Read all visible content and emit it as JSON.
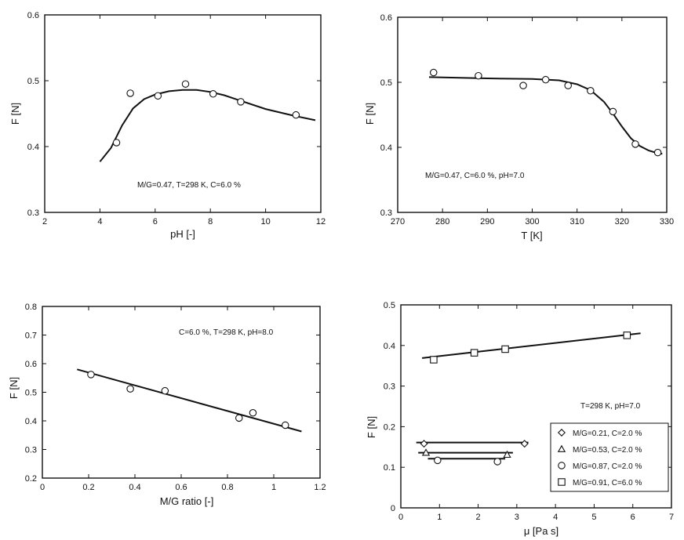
{
  "chart_data": [
    {
      "type": "scatter",
      "xlabel": "pH  [-]",
      "ylabel": "F  [N]",
      "xlim": [
        2,
        12
      ],
      "ylim": [
        0.3,
        0.6
      ],
      "xticks": [
        2,
        4,
        6,
        8,
        10,
        12
      ],
      "yticks": [
        0.3,
        0.4,
        0.5,
        0.6
      ],
      "xtick_labels": [
        "2",
        "4",
        "6",
        "8",
        "10",
        "12"
      ],
      "ytick_labels": [
        "0.3",
        "0.4",
        "0.5",
        "0.6"
      ],
      "annotation": "M/G=0.47, T=298 K, C=6.0 %",
      "series": [
        {
          "marker": "circle",
          "x": [
            4.6,
            5.1,
            6.1,
            7.1,
            8.1,
            9.1,
            11.1
          ],
          "y": [
            0.406,
            0.481,
            0.477,
            0.495,
            0.48,
            0.468,
            0.448
          ],
          "fit": [
            [
              4.0,
              0.377
            ],
            [
              4.4,
              0.398
            ],
            [
              4.8,
              0.432
            ],
            [
              5.2,
              0.458
            ],
            [
              5.6,
              0.472
            ],
            [
              6.0,
              0.479
            ],
            [
              6.5,
              0.484
            ],
            [
              7.0,
              0.486
            ],
            [
              7.5,
              0.486
            ],
            [
              8.0,
              0.483
            ],
            [
              8.5,
              0.478
            ],
            [
              9.0,
              0.471
            ],
            [
              10.0,
              0.457
            ],
            [
              11.0,
              0.447
            ],
            [
              11.8,
              0.44
            ]
          ]
        }
      ]
    },
    {
      "type": "scatter",
      "xlabel": "T  [K]",
      "ylabel": "F  [N]",
      "xlim": [
        270,
        330
      ],
      "ylim": [
        0.3,
        0.6
      ],
      "xticks": [
        270,
        280,
        290,
        300,
        310,
        320,
        330
      ],
      "yticks": [
        0.3,
        0.4,
        0.5,
        0.6
      ],
      "xtick_labels": [
        "270",
        "280",
        "290",
        "300",
        "310",
        "320",
        "330"
      ],
      "ytick_labels": [
        "0.3",
        "0.4",
        "0.5",
        "0.6"
      ],
      "annotation": "M/G=0.47, C=6.0 %, pH=7.0",
      "series": [
        {
          "marker": "circle",
          "x": [
            278,
            288,
            298,
            303,
            308,
            313,
            318,
            323,
            328
          ],
          "y": [
            0.515,
            0.51,
            0.495,
            0.504,
            0.495,
            0.487,
            0.455,
            0.405,
            0.392
          ],
          "fit": [
            [
              277,
              0.508
            ],
            [
              290,
              0.506
            ],
            [
              300,
              0.505
            ],
            [
              306,
              0.503
            ],
            [
              310,
              0.497
            ],
            [
              313,
              0.488
            ],
            [
              316,
              0.47
            ],
            [
              318,
              0.452
            ],
            [
              320,
              0.432
            ],
            [
              322,
              0.414
            ],
            [
              324,
              0.402
            ],
            [
              326,
              0.395
            ],
            [
              328,
              0.391
            ],
            [
              329,
              0.39
            ]
          ]
        }
      ]
    },
    {
      "type": "scatter",
      "xlabel": "M/G ratio  [-]",
      "ylabel": "F  [N]",
      "xlim": [
        0,
        1.2
      ],
      "ylim": [
        0.2,
        0.8
      ],
      "xticks": [
        0,
        0.2,
        0.4,
        0.6,
        0.8,
        1,
        1.2
      ],
      "yticks": [
        0.2,
        0.3,
        0.4,
        0.5,
        0.6,
        0.7,
        0.8
      ],
      "xtick_labels": [
        "0",
        "0.2",
        "0.4",
        "0.6",
        "0.8",
        "1",
        "1.2"
      ],
      "ytick_labels": [
        "0.2",
        "0.3",
        "0.4",
        "0.5",
        "0.6",
        "0.7",
        "0.8"
      ],
      "annotation": "C=6.0 %, T=298 K, pH=8.0",
      "series": [
        {
          "marker": "circle",
          "x": [
            0.21,
            0.38,
            0.53,
            0.85,
            0.91,
            1.05
          ],
          "y": [
            0.562,
            0.512,
            0.505,
            0.41,
            0.428,
            0.385
          ],
          "fit": [
            [
              0.15,
              0.58
            ],
            [
              1.12,
              0.363
            ]
          ]
        }
      ]
    },
    {
      "type": "scatter",
      "xlabel": "μ [Pa s]",
      "ylabel": "F [N]",
      "xlim": [
        0,
        7
      ],
      "ylim": [
        0,
        0.5
      ],
      "xticks": [
        0,
        1,
        2,
        3,
        4,
        5,
        6,
        7
      ],
      "yticks": [
        0,
        0.1,
        0.2,
        0.3,
        0.4,
        0.5
      ],
      "xtick_labels": [
        "0",
        "1",
        "2",
        "3",
        "4",
        "5",
        "6",
        "7"
      ],
      "ytick_labels": [
        "0",
        "0.1",
        "0.2",
        "0.3",
        "0.4",
        "0.5"
      ],
      "annotation": "T=298 K, pH=7.0",
      "legend_position": "bottom-right",
      "series": [
        {
          "name": "M/G=0.21, C=2.0 %",
          "marker": "diamond",
          "x": [
            0.6,
            3.2
          ],
          "y": [
            0.158,
            0.158
          ],
          "fit": [
            [
              0.4,
              0.161
            ],
            [
              3.3,
              0.161
            ]
          ]
        },
        {
          "name": "M/G=0.53, C=2.0 %",
          "marker": "triangle",
          "x": [
            0.65,
            2.75
          ],
          "y": [
            0.136,
            0.131
          ],
          "fit": [
            [
              0.45,
              0.136
            ],
            [
              2.9,
              0.136
            ]
          ]
        },
        {
          "name": "M/G=0.87, C=2.0 %",
          "marker": "circle",
          "x": [
            0.95,
            2.5
          ],
          "y": [
            0.117,
            0.114
          ],
          "fit": [
            [
              0.7,
              0.121
            ],
            [
              2.7,
              0.121
            ]
          ]
        },
        {
          "name": "M/G=0.91, C=6.0 %",
          "marker": "square",
          "x": [
            0.85,
            1.9,
            2.7,
            5.85
          ],
          "y": [
            0.365,
            0.382,
            0.391,
            0.425
          ],
          "fit": [
            [
              0.55,
              0.369
            ],
            [
              6.2,
              0.43
            ]
          ]
        }
      ]
    }
  ]
}
